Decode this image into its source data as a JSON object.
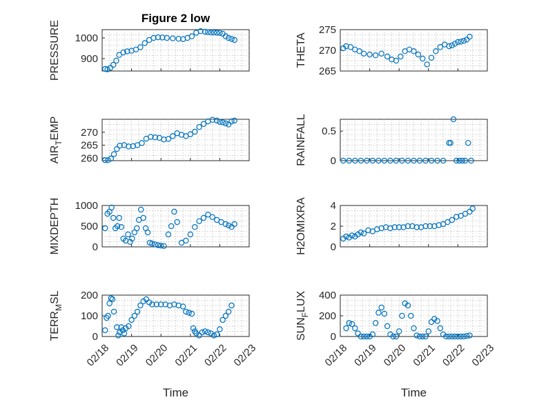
{
  "figure": {
    "title": "Figure 2 low",
    "xlabel": "Time",
    "marker_color": "#0072BD"
  },
  "chart_data": [
    {
      "type": "scatter",
      "ylabel": "PRESSURE",
      "ylabel_sub": "",
      "ylabel_after": "",
      "title": "Figure 2 low",
      "xlim": [
        "02/18",
        "02/23"
      ],
      "xticks": [
        "02/18",
        "02/19",
        "02/20",
        "02/21",
        "02/22",
        "02/23"
      ],
      "ylim": [
        840,
        1040
      ],
      "yticks": [
        900,
        1000
      ],
      "x": [
        0.1,
        0.18,
        0.28,
        0.38,
        0.48,
        0.58,
        0.72,
        0.85,
        1.0,
        1.15,
        1.3,
        1.45,
        1.6,
        1.75,
        1.9,
        2.05,
        2.2,
        2.4,
        2.6,
        2.75,
        2.9,
        3.05,
        3.2,
        3.35,
        3.5,
        3.6,
        3.7,
        3.8,
        3.9,
        4.0,
        4.1,
        4.2,
        4.3,
        4.4,
        4.5
      ],
      "y": [
        850,
        848,
        855,
        870,
        890,
        918,
        930,
        935,
        938,
        944,
        955,
        975,
        990,
        1000,
        1003,
        1002,
        1000,
        998,
        996,
        994,
        1000,
        1008,
        1025,
        1033,
        1030,
        1028,
        1026,
        1026,
        1025,
        1024,
        1020,
        1008,
        1000,
        995,
        990
      ]
    },
    {
      "type": "scatter",
      "ylabel": "THETA",
      "ylabel_sub": "",
      "ylabel_after": "",
      "xlim": [
        "02/18",
        "02/23"
      ],
      "xticks": [
        "02/18",
        "02/19",
        "02/20",
        "02/21",
        "02/22",
        "02/23"
      ],
      "ylim": [
        265,
        275
      ],
      "yticks": [
        265,
        270,
        275
      ],
      "x": [
        0.1,
        0.2,
        0.35,
        0.5,
        0.65,
        0.8,
        1.0,
        1.2,
        1.4,
        1.6,
        1.75,
        1.9,
        2.05,
        2.2,
        2.35,
        2.5,
        2.65,
        2.8,
        2.95,
        3.1,
        3.25,
        3.4,
        3.55,
        3.7,
        3.8,
        3.9,
        4.0,
        4.1,
        4.2,
        4.3,
        4.4
      ],
      "y": [
        270.5,
        271,
        270.8,
        270.2,
        269.8,
        269.2,
        269.0,
        268.8,
        269.2,
        268.5,
        267.8,
        267.5,
        268.5,
        269.8,
        270.2,
        269.8,
        269.0,
        268.0,
        266.6,
        268.2,
        269.8,
        270.8,
        271.4,
        271.0,
        271.2,
        271.6,
        272.0,
        272.1,
        272.3,
        272.6,
        273.3
      ]
    },
    {
      "type": "scatter",
      "ylabel": "AIR",
      "ylabel_sub": "T",
      "ylabel_after": "EMP",
      "xlim": [
        "02/18",
        "02/23"
      ],
      "xticks": [
        "02/18",
        "02/19",
        "02/20",
        "02/21",
        "02/22",
        "02/23"
      ],
      "ylim": [
        259,
        275
      ],
      "yticks": [
        260,
        265,
        270
      ],
      "x": [
        0.1,
        0.2,
        0.3,
        0.4,
        0.5,
        0.6,
        0.75,
        0.9,
        1.05,
        1.2,
        1.35,
        1.5,
        1.65,
        1.8,
        1.95,
        2.1,
        2.25,
        2.4,
        2.55,
        2.7,
        2.85,
        3.0,
        3.15,
        3.3,
        3.45,
        3.6,
        3.75,
        3.9,
        4.0,
        4.1,
        4.2,
        4.3,
        4.4,
        4.5
      ],
      "y": [
        259.2,
        259.2,
        259.8,
        261.5,
        263.5,
        264.8,
        265.0,
        264.5,
        264.6,
        265.0,
        265.8,
        267.5,
        268.2,
        268.0,
        267.8,
        267.2,
        267.4,
        268.5,
        269.6,
        269.0,
        268.5,
        269.2,
        270.2,
        272.0,
        273.2,
        274.2,
        274.8,
        274.5,
        274.0,
        273.8,
        273.4,
        273.0,
        274.2,
        274.5
      ]
    },
    {
      "type": "scatter",
      "ylabel": "RAINFALL",
      "ylabel_sub": "",
      "ylabel_after": "",
      "xlim": [
        "02/18",
        "02/23"
      ],
      "xticks": [
        "02/18",
        "02/19",
        "02/20",
        "02/21",
        "02/22",
        "02/23"
      ],
      "ylim": [
        0,
        0.7
      ],
      "yticks": [
        0,
        0.5
      ],
      "x": [
        0.1,
        0.3,
        0.5,
        0.7,
        0.9,
        1.1,
        1.3,
        1.5,
        1.7,
        1.9,
        2.1,
        2.3,
        2.5,
        2.7,
        2.9,
        3.1,
        3.3,
        3.5,
        3.7,
        3.75,
        3.85,
        3.95,
        4.05,
        4.15,
        4.25,
        4.35,
        4.45
      ],
      "y": [
        0,
        0,
        0,
        0,
        0,
        0,
        0,
        0,
        0,
        0,
        0,
        0,
        0,
        0,
        0,
        0,
        0,
        0,
        0.3,
        0.3,
        0.7,
        0,
        0,
        0,
        0,
        0.3,
        0
      ]
    },
    {
      "type": "scatter",
      "ylabel": "MIXDEPTH",
      "ylabel_sub": "",
      "ylabel_after": "",
      "xlim": [
        "02/18",
        "02/23"
      ],
      "xticks": [
        "02/18",
        "02/19",
        "02/20",
        "02/21",
        "02/22",
        "02/23"
      ],
      "ylim": [
        0,
        1000
      ],
      "yticks": [
        0,
        500,
        1000
      ],
      "x": [
        0.1,
        0.18,
        0.25,
        0.32,
        0.38,
        0.45,
        0.52,
        0.58,
        0.65,
        0.72,
        0.8,
        0.88,
        0.95,
        1.02,
        1.1,
        1.18,
        1.25,
        1.32,
        1.4,
        1.48,
        1.55,
        1.62,
        1.7,
        1.8,
        1.9,
        2.0,
        2.1,
        2.25,
        2.35,
        2.45,
        2.55,
        2.7,
        2.85,
        3.0,
        3.15,
        3.3,
        3.45,
        3.6,
        3.75,
        3.9,
        4.05,
        4.2,
        4.3,
        4.4,
        4.5
      ],
      "y": [
        450,
        800,
        850,
        950,
        700,
        450,
        500,
        700,
        480,
        200,
        150,
        300,
        120,
        200,
        350,
        450,
        650,
        900,
        700,
        450,
        350,
        100,
        80,
        60,
        40,
        30,
        20,
        300,
        500,
        850,
        600,
        100,
        150,
        300,
        480,
        620,
        700,
        780,
        720,
        650,
        600,
        550,
        520,
        480,
        550
      ]
    },
    {
      "type": "scatter",
      "ylabel": "H2OMIXRA",
      "ylabel_sub": "",
      "ylabel_after": "",
      "xlim": [
        "02/18",
        "02/23"
      ],
      "xticks": [
        "02/18",
        "02/19",
        "02/20",
        "02/21",
        "02/22",
        "02/23"
      ],
      "ylim": [
        0,
        4
      ],
      "yticks": [
        0,
        2,
        4
      ],
      "x": [
        0.1,
        0.2,
        0.3,
        0.4,
        0.5,
        0.6,
        0.7,
        0.8,
        0.95,
        1.1,
        1.25,
        1.4,
        1.55,
        1.7,
        1.85,
        2.0,
        2.15,
        2.3,
        2.45,
        2.6,
        2.75,
        2.9,
        3.05,
        3.2,
        3.35,
        3.5,
        3.65,
        3.8,
        3.95,
        4.1,
        4.25,
        4.4,
        4.5
      ],
      "y": [
        0.8,
        1.0,
        0.9,
        1.1,
        1.0,
        1.2,
        1.4,
        1.3,
        1.6,
        1.5,
        1.7,
        1.8,
        1.9,
        1.8,
        1.9,
        1.9,
        1.9,
        2.0,
        2.0,
        1.9,
        1.9,
        2.0,
        2.0,
        2.0,
        2.1,
        2.2,
        2.4,
        2.6,
        2.9,
        3.0,
        3.2,
        3.4,
        3.7
      ]
    },
    {
      "type": "scatter",
      "ylabel": "TERR",
      "ylabel_sub": "M",
      "ylabel_after": "SL",
      "xlim": [
        "02/18",
        "02/23"
      ],
      "xticks": [
        "02/18",
        "02/19",
        "02/20",
        "02/21",
        "02/22",
        "02/23"
      ],
      "ylim": [
        0,
        200
      ],
      "yticks": [
        0,
        100,
        200
      ],
      "x": [
        0.1,
        0.15,
        0.2,
        0.25,
        0.3,
        0.35,
        0.4,
        0.5,
        0.55,
        0.6,
        0.65,
        0.7,
        0.75,
        0.8,
        0.9,
        1.0,
        1.1,
        1.2,
        1.3,
        1.4,
        1.5,
        1.6,
        1.7,
        1.85,
        2.0,
        2.15,
        2.3,
        2.45,
        2.6,
        2.75,
        2.85,
        2.95,
        3.05,
        3.1,
        3.15,
        3.2,
        3.3,
        3.4,
        3.5,
        3.6,
        3.7,
        3.8,
        3.9,
        4.0,
        4.1,
        4.2,
        4.3,
        4.4
      ],
      "y": [
        30,
        90,
        100,
        160,
        185,
        180,
        120,
        45,
        5,
        20,
        45,
        30,
        15,
        40,
        50,
        80,
        100,
        120,
        150,
        170,
        180,
        165,
        155,
        155,
        155,
        155,
        150,
        155,
        150,
        145,
        120,
        115,
        110,
        40,
        25,
        15,
        5,
        20,
        25,
        20,
        15,
        5,
        10,
        35,
        80,
        100,
        120,
        150
      ]
    },
    {
      "type": "scatter",
      "ylabel": "SUN",
      "ylabel_sub": "F",
      "ylabel_after": "LUX",
      "xlim": [
        "02/18",
        "02/23"
      ],
      "xticks": [
        "02/18",
        "02/19",
        "02/20",
        "02/21",
        "02/22",
        "02/23"
      ],
      "ylim": [
        0,
        400
      ],
      "yticks": [
        0,
        200,
        400
      ],
      "x": [
        0.2,
        0.3,
        0.4,
        0.5,
        0.6,
        0.7,
        0.8,
        0.9,
        1.0,
        1.1,
        1.2,
        1.3,
        1.4,
        1.5,
        1.6,
        1.7,
        1.8,
        1.9,
        2.0,
        2.1,
        2.2,
        2.3,
        2.4,
        2.5,
        2.6,
        2.7,
        2.8,
        2.9,
        3.0,
        3.1,
        3.2,
        3.3,
        3.4,
        3.5,
        3.6,
        3.7,
        3.8,
        3.9,
        4.0,
        4.1,
        4.2,
        4.3,
        4.4
      ],
      "y": [
        80,
        130,
        120,
        80,
        30,
        0,
        0,
        0,
        0,
        20,
        130,
        230,
        280,
        220,
        100,
        20,
        0,
        0,
        50,
        200,
        320,
        300,
        200,
        80,
        10,
        0,
        0,
        0,
        50,
        140,
        170,
        150,
        80,
        20,
        0,
        0,
        0,
        0,
        0,
        0,
        0,
        5,
        10
      ]
    }
  ]
}
